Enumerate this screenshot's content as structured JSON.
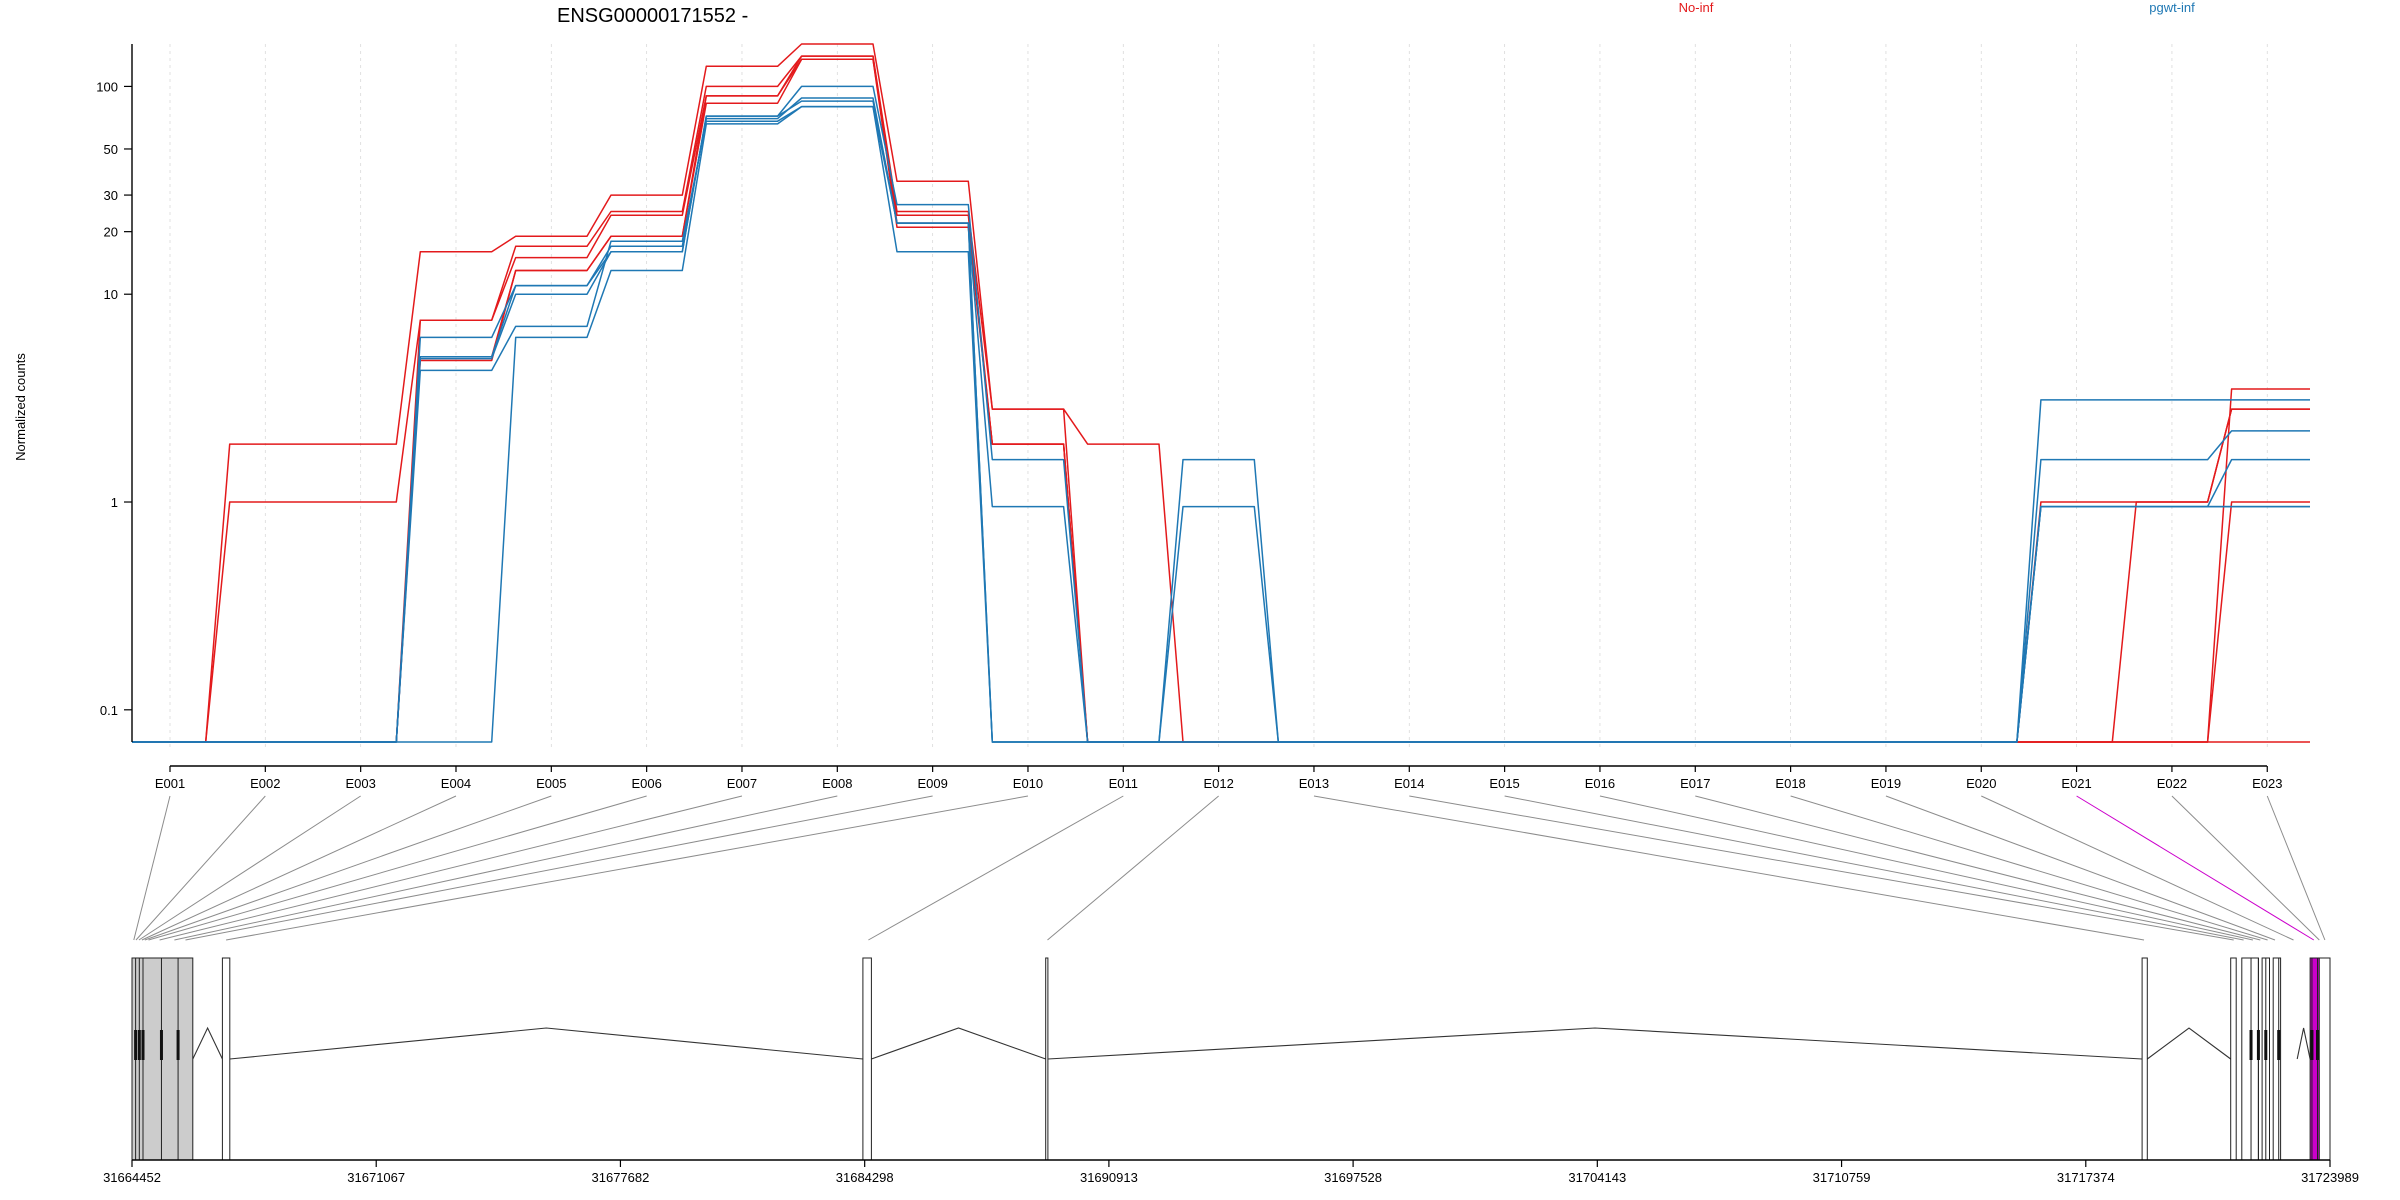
{
  "chart_data": [
    {
      "type": "line",
      "title": "ENSG00000171552 -",
      "ylabel": "Normalized counts",
      "xlabel": "",
      "yscale": "log",
      "ylim": [
        0.07,
        160
      ],
      "yticks": [
        0.1,
        1,
        10,
        20,
        30,
        50,
        100
      ],
      "ytick_labels": [
        "0.1",
        "1",
        "10",
        "20",
        "30",
        "50",
        "100"
      ],
      "categories": [
        "E001",
        "E002",
        "E003",
        "E004",
        "E005",
        "E006",
        "E007",
        "E008",
        "E009",
        "E010",
        "E011",
        "E012",
        "E013",
        "E014",
        "E015",
        "E016",
        "E017",
        "E018",
        "E019",
        "E020",
        "E021",
        "E022",
        "E023"
      ],
      "grid": "vertical",
      "legend": [
        {
          "name": "No-inf",
          "color": "#e31a1c",
          "placement": "top-center"
        },
        {
          "name": "pgwt-inf",
          "color": "#1f78b4",
          "placement": "top-right"
        }
      ],
      "series": [
        {
          "name": "No-inf",
          "values": [
            0.07,
            1.9,
            1.9,
            16,
            19,
            30,
            125,
            160,
            35,
            2.8,
            1.9,
            0.07,
            0.07,
            0.07,
            0.07,
            0.07,
            0.07,
            0.07,
            0.07,
            0.07,
            0.07,
            0.07,
            3.5
          ]
        },
        {
          "name": "No-inf",
          "values": [
            0.07,
            1.0,
            1.0,
            7.5,
            17,
            25,
            100,
            140,
            25,
            2.8,
            0.07,
            0.07,
            0.07,
            0.07,
            0.07,
            0.07,
            0.07,
            0.07,
            0.07,
            0.07,
            1.0,
            1.0,
            2.8
          ]
        },
        {
          "name": "No-inf",
          "values": [
            0.07,
            0.07,
            0.07,
            7.5,
            15,
            24,
            90,
            135,
            21,
            1.9,
            0.07,
            0.07,
            0.07,
            0.07,
            0.07,
            0.07,
            0.07,
            0.07,
            0.07,
            0.07,
            0.07,
            1.0,
            2.8
          ]
        },
        {
          "name": "No-inf",
          "values": [
            0.07,
            0.07,
            0.07,
            5.0,
            13,
            19,
            90,
            140,
            22,
            1.9,
            0.07,
            0.07,
            0.07,
            0.07,
            0.07,
            0.07,
            0.07,
            0.07,
            0.07,
            0.07,
            0.07,
            0.07,
            1.0
          ]
        },
        {
          "name": "No-inf",
          "values": [
            0.07,
            0.07,
            0.07,
            4.8,
            13,
            19,
            83,
            135,
            24,
            1.9,
            0.07,
            0.07,
            0.07,
            0.07,
            0.07,
            0.07,
            0.07,
            0.07,
            0.07,
            0.07,
            0.07,
            0.07,
            0.07
          ]
        },
        {
          "name": "pgwt-inf",
          "values": [
            0.07,
            0.07,
            0.07,
            6.2,
            11,
            16,
            72,
            100,
            27,
            1.6,
            0.07,
            1.6,
            0.07,
            0.07,
            0.07,
            0.07,
            0.07,
            0.07,
            0.07,
            0.07,
            3.1,
            3.1,
            3.1
          ]
        },
        {
          "name": "pgwt-inf",
          "values": [
            0.07,
            0.07,
            0.07,
            5.0,
            11,
            17,
            70,
            88,
            22,
            0.95,
            0.07,
            0.95,
            0.07,
            0.07,
            0.07,
            0.07,
            0.07,
            0.07,
            0.07,
            0.07,
            1.6,
            1.6,
            2.2
          ]
        },
        {
          "name": "pgwt-inf",
          "values": [
            0.07,
            0.07,
            0.07,
            4.9,
            10,
            16,
            72,
            85,
            22,
            0.07,
            0.07,
            0.07,
            0.07,
            0.07,
            0.07,
            0.07,
            0.07,
            0.07,
            0.07,
            0.07,
            0.95,
            0.95,
            1.6
          ]
        },
        {
          "name": "pgwt-inf",
          "values": [
            0.07,
            0.07,
            0.07,
            4.3,
            7.0,
            18,
            68,
            80,
            22,
            0.07,
            0.07,
            0.07,
            0.07,
            0.07,
            0.07,
            0.07,
            0.07,
            0.07,
            0.07,
            0.07,
            0.95,
            0.95,
            0.95
          ]
        },
        {
          "name": "pgwt-inf",
          "values": [
            0.07,
            0.07,
            0.07,
            0.07,
            6.2,
            13,
            66,
            80,
            16,
            0.07,
            0.07,
            0.07,
            0.07,
            0.07,
            0.07,
            0.07,
            0.07,
            0.07,
            0.07,
            0.07,
            0.95,
            0.95,
            0.95
          ]
        }
      ]
    },
    {
      "type": "gene-model",
      "xlim": [
        31664452,
        31723989
      ],
      "xticks": [
        31664452,
        31671067,
        31677682,
        31684298,
        31690913,
        31697528,
        31704143,
        31710759,
        31717374,
        31723989
      ],
      "xtick_labels": [
        "31664452",
        "31671067",
        "31677682",
        "31684298",
        "31690913",
        "31697528",
        "31704143",
        "31710759",
        "31717374",
        "31723989"
      ],
      "blocks": [
        {
          "start": 31664452,
          "end": 31666100,
          "color": "#cccccc"
        },
        {
          "start": 31666900,
          "end": 31667100,
          "color": "#ffffff"
        },
        {
          "start": 31684250,
          "end": 31684480,
          "color": "#ffffff"
        },
        {
          "start": 31689200,
          "end": 31689260,
          "color": "#ffffff"
        },
        {
          "start": 31718900,
          "end": 31719040,
          "color": "#ffffff"
        },
        {
          "start": 31721300,
          "end": 31721450,
          "color": "#ffffff"
        },
        {
          "start": 31721600,
          "end": 31722050,
          "color": "#ffffff"
        },
        {
          "start": 31722150,
          "end": 31722350,
          "color": "#ffffff"
        },
        {
          "start": 31722450,
          "end": 31722650,
          "color": "#ffffff"
        },
        {
          "start": 31723450,
          "end": 31723700,
          "color": "#cc00cc"
        },
        {
          "start": 31723700,
          "end": 31723989,
          "color": "#ffffff"
        }
      ],
      "dividers": [
        31664550,
        31664650,
        31664750,
        31665250,
        31665700,
        31721850,
        31722050,
        31722250,
        31722600,
        31723500,
        31723650
      ],
      "introns": [
        {
          "start": 31666100,
          "end": 31666900
        },
        {
          "start": 31667100,
          "end": 31684250
        },
        {
          "start": 31684480,
          "end": 31689200
        },
        {
          "start": 31689260,
          "end": 31718900
        },
        {
          "start": 31719040,
          "end": 31721300
        },
        {
          "start": 31723100,
          "end": 31723450
        }
      ],
      "exon_links": [
        {
          "exon": "E001",
          "pos": 31664500
        },
        {
          "exon": "E002",
          "pos": 31664560
        },
        {
          "exon": "E003",
          "pos": 31664640
        },
        {
          "exon": "E004",
          "pos": 31664720
        },
        {
          "exon": "E005",
          "pos": 31664800
        },
        {
          "exon": "E006",
          "pos": 31664900
        },
        {
          "exon": "E007",
          "pos": 31665200
        },
        {
          "exon": "E008",
          "pos": 31665600
        },
        {
          "exon": "E009",
          "pos": 31665900
        },
        {
          "exon": "E010",
          "pos": 31667000
        },
        {
          "exon": "E011",
          "pos": 31684400
        },
        {
          "exon": "E012",
          "pos": 31689250
        },
        {
          "exon": "E013",
          "pos": 31718950
        },
        {
          "exon": "E014",
          "pos": 31721380
        },
        {
          "exon": "E015",
          "pos": 31721650
        },
        {
          "exon": "E016",
          "pos": 31721900
        },
        {
          "exon": "E017",
          "pos": 31722100
        },
        {
          "exon": "E018",
          "pos": 31722300
        },
        {
          "exon": "E019",
          "pos": 31722500
        },
        {
          "exon": "E020",
          "pos": 31723000
        },
        {
          "exon": "E021",
          "pos": 31723550,
          "color": "#cc00cc"
        },
        {
          "exon": "E022",
          "pos": 31723700
        },
        {
          "exon": "E023",
          "pos": 31723850
        }
      ]
    }
  ]
}
